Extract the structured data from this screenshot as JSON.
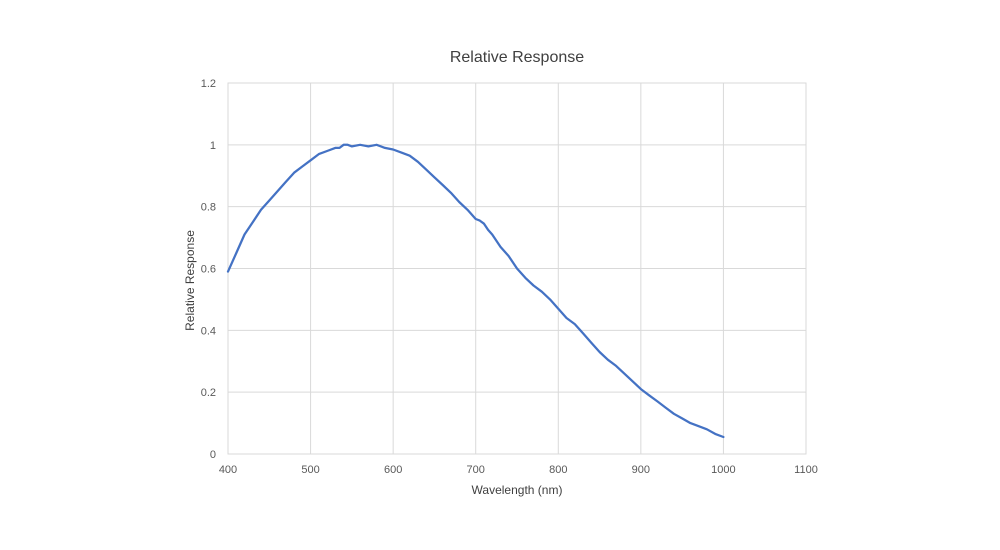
{
  "chart_data": {
    "type": "line",
    "title": "Relative Response",
    "xlabel": "Wavelength (nm)",
    "ylabel": "Relative Response",
    "xlim": [
      400,
      1100
    ],
    "ylim": [
      0,
      1.2
    ],
    "x_ticks": [
      400,
      500,
      600,
      700,
      800,
      900,
      1000,
      1100
    ],
    "y_ticks": [
      0,
      0.2,
      0.4,
      0.6,
      0.8,
      1,
      1.2
    ],
    "grid": true,
    "legend": "none",
    "line_color": "#4472C4",
    "series": [
      {
        "x": [
          400,
          410,
          420,
          430,
          440,
          450,
          460,
          470,
          480,
          490,
          500,
          510,
          520,
          530,
          535,
          540,
          545,
          550,
          560,
          570,
          580,
          590,
          600,
          610,
          620,
          630,
          640,
          650,
          660,
          670,
          680,
          690,
          700,
          705,
          710,
          715,
          720,
          730,
          740,
          750,
          760,
          770,
          780,
          790,
          800,
          810,
          820,
          830,
          840,
          850,
          860,
          870,
          880,
          890,
          900,
          910,
          920,
          930,
          940,
          950,
          960,
          970,
          980,
          990,
          1000
        ],
        "y": [
          0.59,
          0.65,
          0.71,
          0.75,
          0.79,
          0.82,
          0.85,
          0.88,
          0.91,
          0.93,
          0.95,
          0.97,
          0.98,
          0.99,
          0.99,
          1.0,
          1.0,
          0.995,
          1.0,
          0.995,
          1.0,
          0.99,
          0.985,
          0.975,
          0.965,
          0.945,
          0.92,
          0.895,
          0.87,
          0.845,
          0.815,
          0.79,
          0.76,
          0.755,
          0.745,
          0.725,
          0.71,
          0.67,
          0.64,
          0.6,
          0.57,
          0.545,
          0.525,
          0.5,
          0.47,
          0.44,
          0.42,
          0.39,
          0.36,
          0.33,
          0.305,
          0.285,
          0.26,
          0.235,
          0.21,
          0.19,
          0.17,
          0.15,
          0.13,
          0.115,
          0.1,
          0.09,
          0.08,
          0.065,
          0.055
        ]
      }
    ]
  }
}
